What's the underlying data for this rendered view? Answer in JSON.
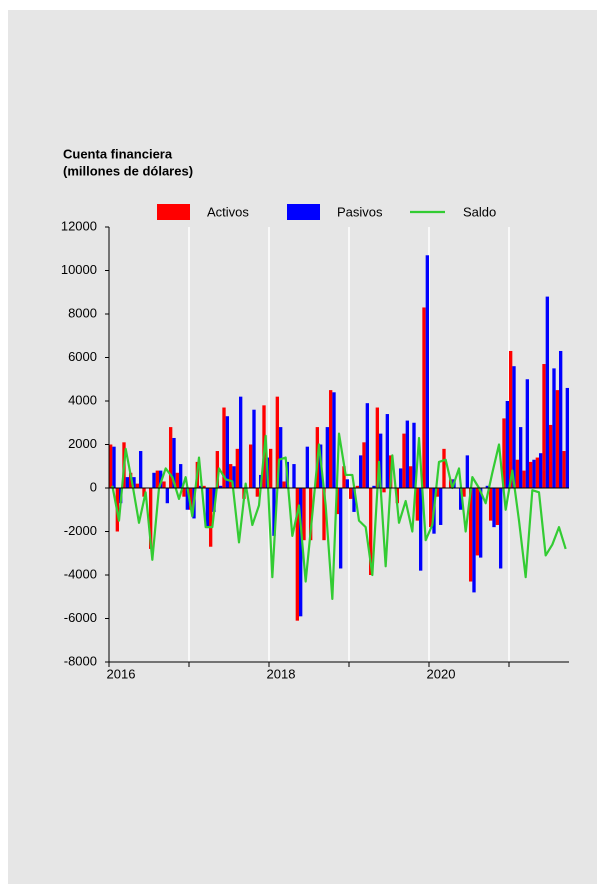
{
  "chart_data": {
    "type": "bar_line",
    "title": "Cuenta financiera",
    "subtitle": "(millones de dólares)",
    "categories": [
      "2016",
      null,
      null,
      null,
      null,
      null,
      null,
      null,
      null,
      null,
      null,
      null,
      null,
      null,
      null,
      null,
      null,
      null,
      null,
      null,
      null,
      null,
      null,
      null,
      "2018",
      null,
      null,
      null,
      null,
      null,
      null,
      null,
      null,
      null,
      null,
      null,
      null,
      null,
      null,
      null,
      null,
      null,
      null,
      null,
      null,
      null,
      null,
      null,
      "2020",
      null,
      null,
      null,
      null,
      null,
      null,
      null,
      null,
      null,
      null,
      null,
      null,
      null,
      null,
      null,
      null,
      null,
      null,
      null,
      null
    ],
    "series": [
      {
        "name": "Activos",
        "color": "#ff0000",
        "kind": "bar",
        "values": [
          2000,
          -2000,
          2100,
          700,
          200,
          -400,
          -2800,
          800,
          300,
          2800,
          700,
          -400,
          -1000,
          1200,
          100,
          -2700,
          1700,
          3700,
          1100,
          1800,
          -500,
          2000,
          -400,
          3800,
          1800,
          4200,
          300,
          0,
          -6100,
          -2400,
          -2400,
          2800,
          -2400,
          4500,
          -1200,
          1000,
          -500,
          100,
          2100,
          -4000,
          3700,
          -200,
          1500,
          -700,
          2500,
          1000,
          -1500,
          8300,
          -1800,
          -400,
          1800,
          400,
          0,
          -400,
          -4300,
          -3100,
          0,
          -1500,
          -1700,
          3200,
          6300,
          1300,
          800,
          1200,
          1400,
          5700,
          2900,
          4500,
          1700
        ]
      },
      {
        "name": "Pasivos",
        "color": "#0000ff",
        "kind": "bar",
        "values": [
          1900,
          -700,
          500,
          500,
          1700,
          0,
          700,
          800,
          -700,
          2300,
          1100,
          -1000,
          -1400,
          100,
          -1800,
          -1100,
          100,
          3300,
          1000,
          4200,
          0,
          3600,
          600,
          1400,
          -2200,
          2800,
          1200,
          1100,
          -5900,
          1900,
          0,
          2000,
          2800,
          4400,
          -3700,
          400,
          -1100,
          1500,
          3900,
          100,
          2500,
          3400,
          0,
          900,
          3100,
          3000,
          -3800,
          10700,
          -2100,
          -1700,
          0,
          400,
          -1000,
          1500,
          -4800,
          -3200,
          100,
          -1800,
          -3700,
          4000,
          5600,
          2800,
          5000,
          1300,
          1600,
          8800,
          5500,
          6300,
          4600
        ]
      },
      {
        "name": "Saldo",
        "color": "#33cc33",
        "kind": "line",
        "values": [
          100,
          -1500,
          1800,
          200,
          -1600,
          -200,
          -3300,
          0,
          900,
          500,
          -500,
          500,
          -1300,
          1400,
          -1800,
          -1800,
          900,
          400,
          300,
          -2500,
          200,
          -1700,
          -800,
          2400,
          -4100,
          1300,
          1400,
          -2200,
          -800,
          -4300,
          -1200,
          2000,
          -800,
          -5100,
          2500,
          600,
          600,
          -1500,
          -1800,
          -4000,
          1200,
          -3600,
          1500,
          -1600,
          -600,
          -2000,
          2300,
          -2400,
          -1700,
          1200,
          1300,
          0,
          900,
          -2000,
          500,
          0,
          -700,
          700,
          2000,
          -1000,
          800,
          -1500,
          -4100,
          -100,
          -200,
          -3100,
          -2600,
          -1800,
          -2800
        ]
      }
    ],
    "ylim": [
      -8000,
      12000
    ],
    "yticks": [
      -8000,
      -6000,
      -4000,
      -2000,
      0,
      2000,
      4000,
      6000,
      8000,
      10000,
      12000
    ],
    "grid": true,
    "legend": "top"
  }
}
